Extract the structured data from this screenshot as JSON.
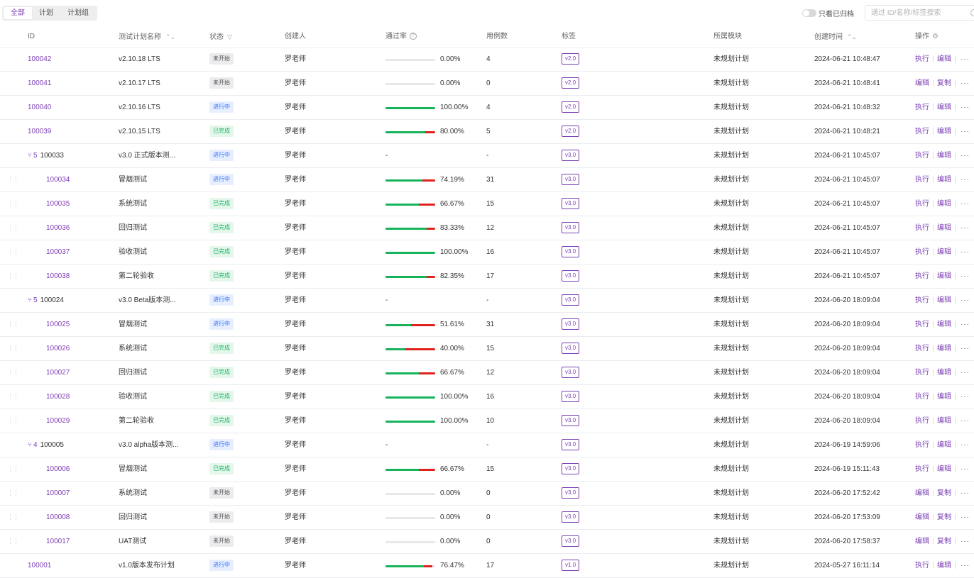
{
  "tabs": [
    {
      "label": "全部",
      "active": true
    },
    {
      "label": "计划",
      "active": false
    },
    {
      "label": "计划组",
      "active": false
    }
  ],
  "archive_toggle": {
    "label": "只看已归档",
    "on": false
  },
  "search": {
    "placeholder": "通过 ID/名称/标签搜索",
    "value": ""
  },
  "columns": {
    "id": "ID",
    "name": "测试计划名称",
    "status": "状态",
    "creator": "创建人",
    "pass_rate": "通过率",
    "case_count": "用例数",
    "tags": "标签",
    "module": "所属模块",
    "created": "创建时间",
    "actions": "操作"
  },
  "rows": [
    {
      "kind": "plan",
      "id": "100042",
      "name": "v2.10.18 LTS",
      "status": "未开始",
      "status_type": "todo",
      "creator": "罗老师",
      "pass": 0,
      "fail": 0,
      "rate": "0.00%",
      "cases": "4",
      "tag": "v2.0",
      "module": "未规划计划",
      "created": "2024-06-21 10:48:47",
      "actions": [
        "执行",
        "编辑"
      ]
    },
    {
      "kind": "plan",
      "id": "100041",
      "name": "v2.10.17 LTS",
      "status": "未开始",
      "status_type": "todo",
      "creator": "罗老师",
      "pass": 0,
      "fail": 0,
      "rate": "0.00%",
      "cases": "0",
      "tag": "v2.0",
      "module": "未规划计划",
      "created": "2024-06-21 10:48:41",
      "actions": [
        "编辑",
        "复制"
      ]
    },
    {
      "kind": "plan",
      "id": "100040",
      "name": "v2.10.16 LTS",
      "status": "进行中",
      "status_type": "doing",
      "creator": "罗老师",
      "pass": 100,
      "fail": 0,
      "rate": "100.00%",
      "cases": "4",
      "tag": "v2.0",
      "module": "未规划计划",
      "created": "2024-06-21 10:48:32",
      "actions": [
        "执行",
        "编辑"
      ]
    },
    {
      "kind": "plan",
      "id": "100039",
      "name": "v2.10.15 LTS",
      "status": "已完成",
      "status_type": "done",
      "creator": "罗老师",
      "pass": 80,
      "fail": 20,
      "rate": "80.00%",
      "cases": "5",
      "tag": "v2.0",
      "module": "未规划计划",
      "created": "2024-06-21 10:48:21",
      "actions": [
        "执行",
        "编辑"
      ]
    },
    {
      "kind": "group",
      "id": "100033",
      "count": "5",
      "name": "v3.0 正式版本测...",
      "status": "进行中",
      "status_type": "doing",
      "creator": "罗老师",
      "rate": "-",
      "cases": "-",
      "tag": "v3.0",
      "module": "未规划计划",
      "created": "2024-06-21 10:45:07",
      "actions": [
        "执行",
        "编辑"
      ]
    },
    {
      "kind": "child",
      "id": "100034",
      "name": "冒烟测试",
      "status": "进行中",
      "status_type": "doing",
      "creator": "罗老师",
      "pass": 74.19,
      "fail": 25.81,
      "rate": "74.19%",
      "cases": "31",
      "tag": "v3.0",
      "module": "未规划计划",
      "created": "2024-06-21 10:45:07",
      "actions": [
        "执行",
        "编辑"
      ]
    },
    {
      "kind": "child",
      "id": "100035",
      "name": "系统测试",
      "status": "已完成",
      "status_type": "done",
      "creator": "罗老师",
      "pass": 66.67,
      "fail": 33.33,
      "rate": "66.67%",
      "cases": "15",
      "tag": "v3.0",
      "module": "未规划计划",
      "created": "2024-06-21 10:45:07",
      "actions": [
        "执行",
        "编辑"
      ]
    },
    {
      "kind": "child",
      "id": "100036",
      "name": "回归测试",
      "status": "已完成",
      "status_type": "done",
      "creator": "罗老师",
      "pass": 83.33,
      "fail": 16.67,
      "rate": "83.33%",
      "cases": "12",
      "tag": "v3.0",
      "module": "未规划计划",
      "created": "2024-06-21 10:45:07",
      "actions": [
        "执行",
        "编辑"
      ]
    },
    {
      "kind": "child",
      "id": "100037",
      "name": "验收测试",
      "status": "已完成",
      "status_type": "done",
      "creator": "罗老师",
      "pass": 100,
      "fail": 0,
      "rate": "100.00%",
      "cases": "16",
      "tag": "v3.0",
      "module": "未规划计划",
      "created": "2024-06-21 10:45:07",
      "actions": [
        "执行",
        "编辑"
      ]
    },
    {
      "kind": "child",
      "id": "100038",
      "name": "第二轮验收",
      "status": "已完成",
      "status_type": "done",
      "creator": "罗老师",
      "pass": 82.35,
      "fail": 17.65,
      "rate": "82.35%",
      "cases": "17",
      "tag": "v3.0",
      "module": "未规划计划",
      "created": "2024-06-21 10:45:07",
      "actions": [
        "执行",
        "编辑"
      ]
    },
    {
      "kind": "group",
      "id": "100024",
      "count": "5",
      "name": "v3.0 Beta版本测...",
      "status": "进行中",
      "status_type": "doing",
      "creator": "罗老师",
      "rate": "-",
      "cases": "-",
      "tag": "v3.0",
      "module": "未规划计划",
      "created": "2024-06-20 18:09:04",
      "actions": [
        "执行",
        "编辑"
      ]
    },
    {
      "kind": "child",
      "id": "100025",
      "name": "冒烟测试",
      "status": "进行中",
      "status_type": "doing",
      "creator": "罗老师",
      "pass": 51.61,
      "fail": 48.39,
      "rate": "51.61%",
      "cases": "31",
      "tag": "v3.0",
      "module": "未规划计划",
      "created": "2024-06-20 18:09:04",
      "actions": [
        "执行",
        "编辑"
      ]
    },
    {
      "kind": "child",
      "id": "100026",
      "name": "系统测试",
      "status": "已完成",
      "status_type": "done",
      "creator": "罗老师",
      "pass": 40,
      "fail": 60,
      "rate": "40.00%",
      "cases": "15",
      "tag": "v3.0",
      "module": "未规划计划",
      "created": "2024-06-20 18:09:04",
      "actions": [
        "执行",
        "编辑"
      ]
    },
    {
      "kind": "child",
      "id": "100027",
      "name": "回归测试",
      "status": "已完成",
      "status_type": "done",
      "creator": "罗老师",
      "pass": 66.67,
      "fail": 33.33,
      "rate": "66.67%",
      "cases": "12",
      "tag": "v3.0",
      "module": "未规划计划",
      "created": "2024-06-20 18:09:04",
      "actions": [
        "执行",
        "编辑"
      ]
    },
    {
      "kind": "child",
      "id": "100028",
      "name": "验收测试",
      "status": "已完成",
      "status_type": "done",
      "creator": "罗老师",
      "pass": 100,
      "fail": 0,
      "rate": "100.00%",
      "cases": "16",
      "tag": "v3.0",
      "module": "未规划计划",
      "created": "2024-06-20 18:09:04",
      "actions": [
        "执行",
        "编辑"
      ]
    },
    {
      "kind": "child",
      "id": "100029",
      "name": "第二轮验收",
      "status": "已完成",
      "status_type": "done",
      "creator": "罗老师",
      "pass": 100,
      "fail": 0,
      "rate": "100.00%",
      "cases": "10",
      "tag": "v3.0",
      "module": "未规划计划",
      "created": "2024-06-20 18:09:04",
      "actions": [
        "执行",
        "编辑"
      ]
    },
    {
      "kind": "group",
      "id": "100005",
      "count": "4",
      "name": "v3.0 alpha版本测...",
      "status": "进行中",
      "status_type": "doing",
      "creator": "罗老师",
      "rate": "-",
      "cases": "-",
      "tag": "v3.0",
      "module": "未规划计划",
      "created": "2024-06-19 14:59:06",
      "actions": [
        "执行",
        "编辑"
      ]
    },
    {
      "kind": "child",
      "id": "100006",
      "name": "冒烟测试",
      "status": "已完成",
      "status_type": "done",
      "creator": "罗老师",
      "pass": 66.67,
      "fail": 33.33,
      "rate": "66.67%",
      "cases": "15",
      "tag": "v3.0",
      "module": "未规划计划",
      "created": "2024-06-19 15:11:43",
      "actions": [
        "执行",
        "编辑"
      ]
    },
    {
      "kind": "child",
      "id": "100007",
      "name": "系统测试",
      "status": "未开始",
      "status_type": "todo",
      "creator": "罗老师",
      "pass": 0,
      "fail": 0,
      "rate": "0.00%",
      "cases": "0",
      "tag": "v3.0",
      "module": "未规划计划",
      "created": "2024-06-20 17:52:42",
      "actions": [
        "编辑",
        "复制"
      ]
    },
    {
      "kind": "child",
      "id": "100008",
      "name": "回归测试",
      "status": "未开始",
      "status_type": "todo",
      "creator": "罗老师",
      "pass": 0,
      "fail": 0,
      "rate": "0.00%",
      "cases": "0",
      "tag": "v3.0",
      "module": "未规划计划",
      "created": "2024-06-20 17:53:09",
      "actions": [
        "编辑",
        "复制"
      ]
    },
    {
      "kind": "child",
      "id": "100017",
      "name": "UAT测试",
      "status": "未开始",
      "status_type": "todo",
      "creator": "罗老师",
      "pass": 0,
      "fail": 0,
      "rate": "0.00%",
      "cases": "0",
      "tag": "v3.0",
      "module": "未规划计划",
      "created": "2024-06-20 17:58:37",
      "actions": [
        "编辑",
        "复制"
      ]
    },
    {
      "kind": "plan",
      "id": "100001",
      "name": "v1.0版本发布计划",
      "status": "进行中",
      "status_type": "doing",
      "creator": "罗老师",
      "pass": 76.47,
      "fail": 17.65,
      "rate": "76.47%",
      "cases": "17",
      "tag": "v1.0",
      "module": "未规划计划",
      "created": "2024-05-27 16:11:14",
      "actions": [
        "执行",
        "编辑"
      ]
    }
  ],
  "colors": {
    "accent": "#7b3fb3",
    "pass": "#16b35a",
    "fail": "#e0211c",
    "todo_bg": "#ececee",
    "doing": "#3370ff",
    "done": "#1fb36a"
  },
  "icons": {
    "sort": "sort-icon",
    "filter": "filter-icon",
    "info": "info-icon",
    "settings": "gear-icon",
    "group": "branch-icon",
    "more": "more-icon",
    "drag": "drag-handle-icon",
    "search": "search-icon"
  }
}
